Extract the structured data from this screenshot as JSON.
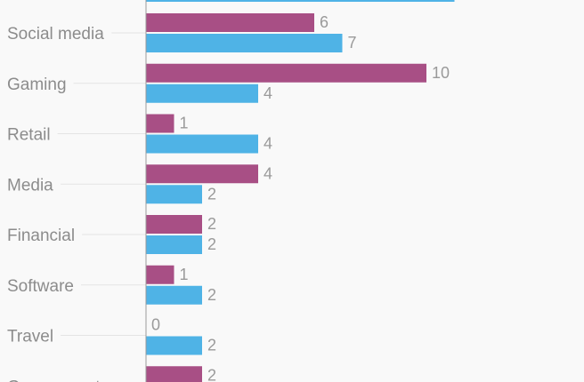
{
  "colors": {
    "background": "#f9f9f9",
    "series_a": "#a84f85",
    "series_b": "#4fb3e6"
  },
  "chart_data": {
    "type": "bar",
    "orientation": "horizontal",
    "categories": [
      "Social media",
      "Gaming",
      "Retail",
      "Media",
      "Financial",
      "Software",
      "Travel",
      "Government"
    ],
    "series": [
      {
        "color": "#a84f85",
        "values": [
          6,
          10,
          1,
          4,
          2,
          1,
          0,
          2
        ]
      },
      {
        "color": "#4fb3e6",
        "values": [
          7,
          4,
          4,
          2,
          2,
          2,
          2,
          null
        ]
      }
    ],
    "partial_top_bar": {
      "series_index": 1,
      "value": 11
    },
    "xlim": [
      0,
      11
    ],
    "grid": true,
    "legend": "none",
    "value_labels": true
  }
}
